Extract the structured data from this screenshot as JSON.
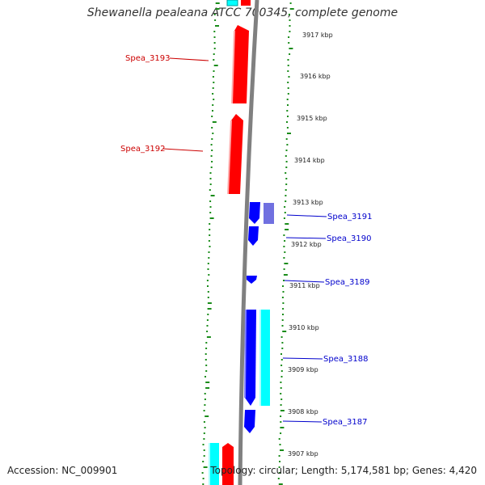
{
  "title": "Shewanella pealeana ATCC 700345, complete genome",
  "footer": {
    "accession": "Accession: NC_009901",
    "summary": "Topology: circular; Length: 5,174,581 bp; Genes: 4,420"
  },
  "colors": {
    "forward_gene": "#ff0000",
    "reverse_gene": "#0000ff",
    "reverse_gene_alt": "#7070e0",
    "rna_or_other": "#00ffff",
    "backbone": "#808080",
    "gc_dots": "#1a8c1a",
    "forward_label": "#cc0000",
    "reverse_label": "#0000cc"
  },
  "tick_labels": [
    "3917 kbp",
    "3916 kbp",
    "3915 kbp",
    "3914 kbp",
    "3913 kbp",
    "3912 kbp",
    "3911 kbp",
    "3910 kbp",
    "3909 kbp",
    "3908 kbp",
    "3907 kbp"
  ],
  "genes_forward": [
    {
      "label": "Spea_3193"
    },
    {
      "label": "Spea_3192"
    }
  ],
  "genes_reverse": [
    {
      "label": "Spea_3191"
    },
    {
      "label": "Spea_3190"
    },
    {
      "label": "Spea_3189"
    },
    {
      "label": "Spea_3188"
    },
    {
      "label": "Spea_3187"
    }
  ]
}
